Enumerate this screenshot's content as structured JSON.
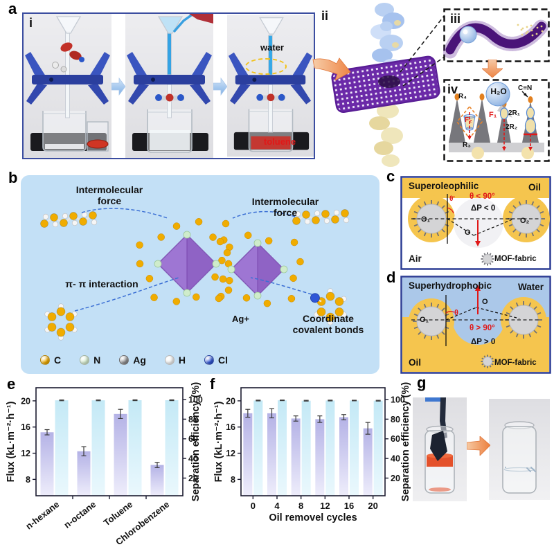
{
  "figure": {
    "panel_labels": {
      "a": "a",
      "b": "b",
      "c": "c",
      "d": "d",
      "e": "e",
      "f": "f",
      "g": "g",
      "sub_i": "i",
      "sub_ii": "ii",
      "sub_iii": "iii",
      "sub_iv": "iv"
    },
    "a": {
      "water_label": "water",
      "toluene_label": "toluene"
    },
    "iv": {
      "h2o": "H₂O",
      "cn": "C≡N",
      "r4": "R₄",
      "r3": "R₃",
      "f1": "F₁",
      "f2": "F₂",
      "two_r1": "2R₁",
      "two_r2": "2R₂"
    },
    "b": {
      "intermolecular_left": "Intermolecular force",
      "intermolecular_right": "Intermolecular force",
      "pi_pi": "π- π interaction",
      "ag_plus": "Ag+",
      "coordinate": "Coordinate covalent bonds",
      "legend": [
        {
          "label": "C",
          "color": "#f0ac00"
        },
        {
          "label": "N",
          "color": "#d8efd0"
        },
        {
          "label": "Ag",
          "color": "#8e8e90"
        },
        {
          "label": "H",
          "color": "#f6f6f6"
        },
        {
          "label": "Cl",
          "color": "#2f56d6"
        }
      ]
    },
    "c": {
      "title": "Superoleophilic",
      "top_phase": "Oil",
      "bottom_phase": "Air",
      "theta_prime": "θ'",
      "theta_cond": "θ < 90°",
      "pressure": "ΔP < 0",
      "o1": "O₁",
      "o2": "O₂",
      "o": "O",
      "legend_label": "MOF-fabric",
      "oil_color": "#f5c54e",
      "border_color": "#2b3c94"
    },
    "d": {
      "title": "Superhydrophobic",
      "top_phase": "Water",
      "bottom_phase": "Oil",
      "theta": "θ",
      "theta_cond": "θ > 90°",
      "pressure": "ΔP > 0",
      "o1": "O₁",
      "o": "O",
      "legend_label": "MOF-fabric",
      "water_color": "#abc8e9",
      "oil_color": "#f5c54e",
      "border_color": "#2b3c94"
    }
  },
  "chart_data": [
    {
      "id": "e",
      "type": "bar",
      "panel": "e",
      "categories": [
        "n-hexane",
        "n-octane",
        "Toluene",
        "Chlorobenzene"
      ],
      "series": [
        {
          "name": "Flux",
          "axis": "left",
          "values": [
            15.2,
            12.3,
            18.0,
            10.2
          ],
          "errors": [
            0.4,
            0.7,
            0.7,
            0.4
          ],
          "color_top": "#b4b2e6",
          "color_bottom": "#eeedfb"
        },
        {
          "name": "Separation efficiency",
          "axis": "right",
          "values": [
            99.2,
            99.2,
            99.3,
            99.3
          ],
          "errors": [
            0.4,
            0.4,
            0.4,
            0.4
          ],
          "color_top": "#c4e9f6",
          "color_bottom": "#eaf8fd"
        }
      ],
      "xlabel": "",
      "ylabel_left": "Flux (kL·m⁻²·h⁻¹)",
      "ylabel_right": "Separation efficiency (%)",
      "ylim_left": [
        5.5,
        22
      ],
      "yticks_left": [
        8,
        12,
        16,
        20
      ],
      "ylim_right": [
        2,
        112
      ],
      "yticks_right": [
        20,
        40,
        60,
        80,
        100
      ],
      "category_label_rotation": -38,
      "grid": false,
      "legend_position": "none"
    },
    {
      "id": "f",
      "type": "bar",
      "panel": "f",
      "categories": [
        "0",
        "4",
        "8",
        "12",
        "16",
        "20"
      ],
      "series": [
        {
          "name": "Flux",
          "axis": "left",
          "values": [
            18.1,
            18.1,
            17.3,
            17.2,
            17.5,
            15.8
          ],
          "errors": [
            0.6,
            0.7,
            0.4,
            0.5,
            0.4,
            0.9
          ],
          "color_top": "#b4b2e6",
          "color_bottom": "#eeedfb"
        },
        {
          "name": "Separation efficiency",
          "axis": "right",
          "values": [
            99.0,
            99.2,
            98.8,
            99.0,
            99.0,
            98.8
          ],
          "errors": [
            0.4,
            0.3,
            0.4,
            0.4,
            0.3,
            0.4
          ],
          "color_top": "#c4e9f6",
          "color_bottom": "#eaf8fd"
        }
      ],
      "xlabel": "Oil removel cycles",
      "ylabel_left": "Flux (kL·m⁻²·h⁻¹)",
      "ylabel_right": "Separation efficiency (%)",
      "ylim_left": [
        5.5,
        22
      ],
      "yticks_left": [
        8,
        12,
        16,
        20
      ],
      "ylim_right": [
        2,
        112
      ],
      "yticks_right": [
        20,
        40,
        60,
        80,
        100
      ],
      "category_label_rotation": 0,
      "grid": false,
      "legend_position": "none"
    }
  ]
}
